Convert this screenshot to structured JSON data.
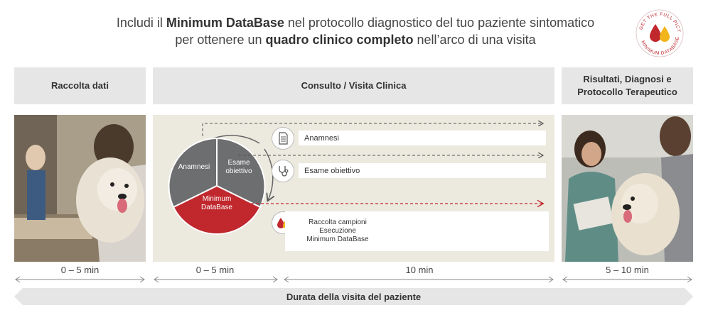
{
  "headline": {
    "line1_pre": "Includi il ",
    "line1_bold": "Minimum DataBase",
    "line1_post": " nel protocollo diagnostico del tuo paziente sintomatico",
    "line2_pre": "per ottenere un ",
    "line2_bold": "quadro clinico completo",
    "line2_post": " nell’arco di una visita"
  },
  "badge": {
    "text": "GET THE FULL PICTURE · MINIMUM DATABASE",
    "colors": {
      "drop_red": "#c0282d",
      "drop_yellow": "#f2b61c"
    }
  },
  "columns": [
    {
      "title": "Raccolta dati",
      "duration": "0 – 5 min"
    },
    {
      "title": "Consulto / Visita Clinica",
      "duration_left": "0 – 5 min",
      "duration_right": "10 min"
    },
    {
      "title": "Risultati, Diagnosi e Protocollo Terapeutico",
      "duration": "5 – 10 min"
    }
  ],
  "cycle": {
    "segments": [
      {
        "label": "Anamnesi",
        "color": "#6d6e70"
      },
      {
        "label": "Esame obiettivo",
        "color": "#6d6e70"
      },
      {
        "label": "Minimum DataBase",
        "color": "#c0282d"
      }
    ]
  },
  "steps": [
    {
      "label": "Anamnesi",
      "icon": "document-icon"
    },
    {
      "label": "Esame obiettivo",
      "icon": "stethoscope-icon"
    },
    {
      "label": "Raccolta campioni Esecuzione Minimum DataBase",
      "lines": [
        "Raccolta campioni",
        "Esecuzione",
        "Minimum DataBase"
      ],
      "icon": "blood-drops-icon"
    }
  ],
  "gantt_colors": [
    "#9c9860",
    "#c0282d",
    "#f2b61c",
    "#f2b61c",
    "#f2b61c"
  ],
  "footer": {
    "label": "Durata della visita del paziente"
  },
  "colors": {
    "accent_red": "#c0282d",
    "accent_yellow": "#f2b61c",
    "olive": "#9c9860",
    "gray": "#6d6e70"
  }
}
